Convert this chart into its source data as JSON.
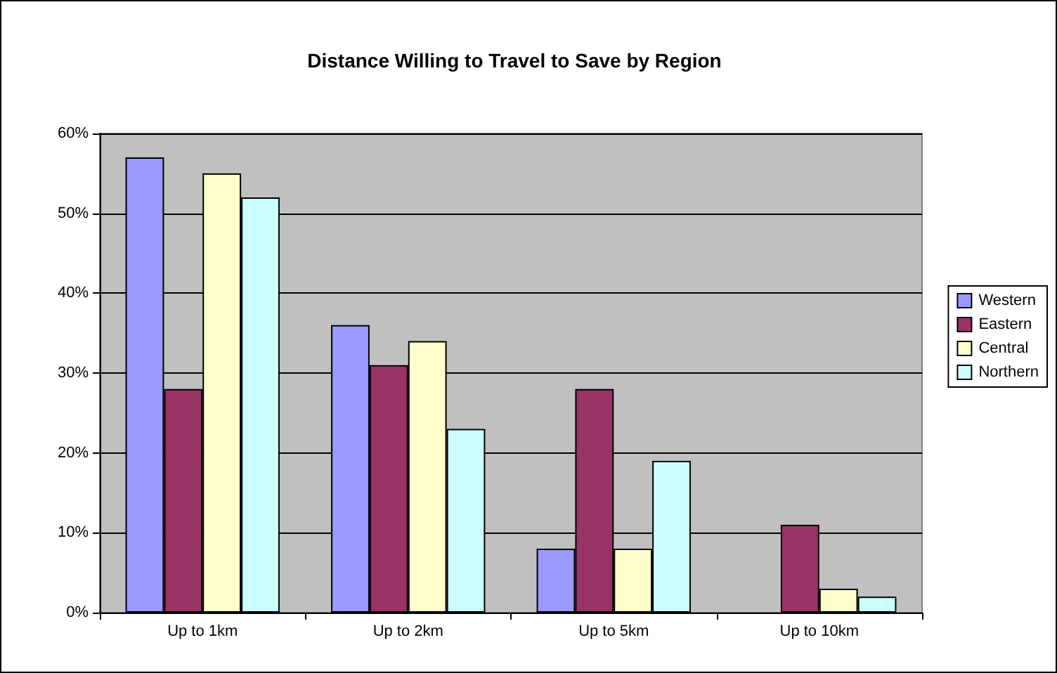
{
  "chart_data": {
    "type": "bar",
    "title": "Distance Willing to Travel to Save by Region",
    "categories": [
      "Up to 1km",
      "Up to 2km",
      "Up to 5km",
      "Up to 10km"
    ],
    "series": [
      {
        "name": "Western",
        "color": "#9999ff",
        "values": [
          57,
          36,
          8,
          0
        ]
      },
      {
        "name": "Eastern",
        "color": "#993366",
        "values": [
          28,
          31,
          28,
          11
        ]
      },
      {
        "name": "Central",
        "color": "#ffffcc",
        "values": [
          55,
          34,
          8,
          3
        ]
      },
      {
        "name": "Northern",
        "color": "#ccffff",
        "values": [
          52,
          23,
          19,
          2
        ]
      }
    ],
    "ylim": [
      0,
      60
    ],
    "yticks": [
      {
        "value": 0,
        "label": "0%"
      },
      {
        "value": 10,
        "label": "10%"
      },
      {
        "value": 20,
        "label": "20%"
      },
      {
        "value": 30,
        "label": "30%"
      },
      {
        "value": 40,
        "label": "40%"
      },
      {
        "value": 50,
        "label": "50%"
      },
      {
        "value": 60,
        "label": "60%"
      }
    ],
    "grid": "y",
    "legend": "right"
  }
}
